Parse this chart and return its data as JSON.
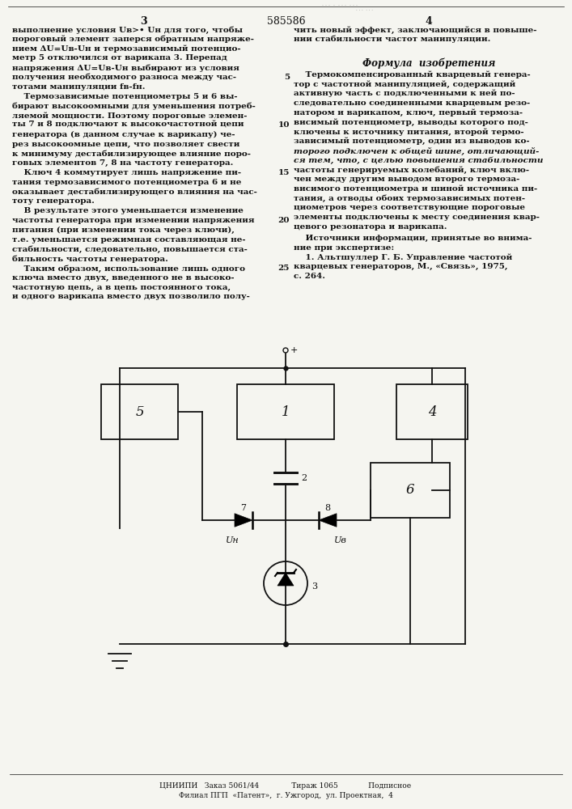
{
  "patent_number": "585586",
  "background_color": "#f5f5f0",
  "text_color": "#111111",
  "col1_lines": [
    "выполнение условия Uв>• Uн для того, чтобы",
    "пороговый элемент заперся обратным напряже-",
    "нием ΔU=Uв-Uн и термозависимый потенцио-",
    "метр 5 отключился от варикапа 3. Перепад",
    "напряжения ΔU=Uв-Uн выбирают из условия",
    "получения необходимого разноса между час-",
    "тотами манипуляции fв-fн.",
    "    Термозависимые потенциометры 5 и 6 вы-",
    "бирают высокоомными для уменьшения потреб-",
    "ляемой мощности. Поэтому пороговые элемен-",
    "ты 7 и 8 подключают к высокочастотной цепи",
    "генератора (в данном случае к варикапу) че-",
    "рез высокоомные цепи, что позволяет свести",
    "к минимуму дестабилизирующее влияние поро-",
    "говых элементов 7, 8 на частоту генератора.",
    "    Ключ 4 коммутирует лишь напряжение пи-",
    "тания термозависимого потенциометра 6 и не",
    "оказывает дестабилизирующего влияния на час-",
    "тоту генератора.",
    "    В результате этого уменьшается изменение",
    "частоты генератора при изменении напряжения",
    "питания (при изменении тока через ключи),",
    "т.е. уменьшается режимная составляющая не-",
    "стабильности, следовательно, повышается ста-",
    "бильность частоты генератора.",
    "    Таким образом, использование лишь одного",
    "ключа вместо двух, введенного не в высоко-",
    "частотную цепь, а в цепь постоянного тока,",
    "и одного варикапа вместо двух позволило полу-"
  ],
  "col2_top_lines": [
    "чить новый эффект, заключающийся в повыше-",
    "нии стабильности частот манипуляции."
  ],
  "formula_title": "Формула  изобретения",
  "col2_formula_lines": [
    "    Термокомпенсированный кварцевый генера-",
    "тор с частотной манипуляцией, содержащий",
    "активную часть с подключенными к ней по-",
    "следовательно соединенными кварцевым резо-",
    "натором и варикапом, ключ, первый термоза-",
    "висимый потенциометр, выводы которого под-",
    "ключены к источнику питания, второй термо-",
    "зависимый потенциометр, один из выводов ко-",
    "торого подключен к общей шине, отличающий-",
    "ся тем, что, с целью повышения стабильности",
    "частоты генерируемых колебаний, ключ вклю-",
    "чен между другим выводом второго термоза-",
    "висимого потенциометра и шиной источника пи-",
    "тания, а отводы обоих термозависимых потен-",
    "циометров через соответствующие пороговые",
    "элементы подключены к месту соединения квар-",
    "цевого резонатора и варикапа."
  ],
  "col2_sources_lines": [
    "    Источники информации, принятые во внима-",
    "ние при экспертизе:",
    "    1. Альтшуллер Г. Б. Управление частотой",
    "кварцевых генераторов, М., «Связь», 1975,",
    "с. 264."
  ],
  "line_numbers": [
    "5",
    "10",
    "15",
    "20",
    "25"
  ],
  "footer_line1": "ЦНИИПИ   Заказ 5061/44              Тираж 1065             Подписное",
  "footer_line2": "Филиал ПГП  «Патент»,  г. Ужгород,  ул. Проектная,  4"
}
